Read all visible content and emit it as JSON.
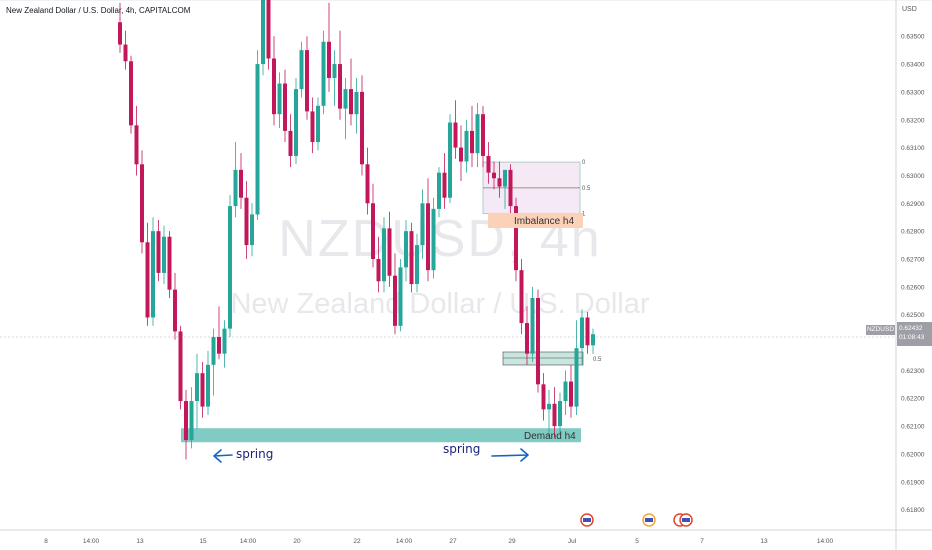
{
  "header": {
    "title": "New Zealand Dollar / U.S. Dollar, 4h, CAPITALCOM"
  },
  "watermark": {
    "symbol": "NZDUSD, 4h",
    "name": "New Zealand Dollar / U.S. Dollar"
  },
  "price_axis": {
    "currency": "USD",
    "ticker": "NZDUSD",
    "last_price": "0.62432",
    "countdown": "01:08:43"
  },
  "annotations": {
    "imbalance_label": "Imbalance h4",
    "demand_label": "Demand h4",
    "spring_left": "spring",
    "spring_right": "spring",
    "fib_upper": [
      "0",
      "0.5",
      "1"
    ],
    "fib_lower": "0.5"
  },
  "colors": {
    "up": "#26a69a",
    "down": "#c2185b",
    "demand": "#80cbc4",
    "imbalance_fill": "#f6e9f6",
    "imbalance_label": "#fbd1b8",
    "arrow": "#1565c0"
  },
  "chart_data": {
    "type": "candlestick",
    "title": "New Zealand Dollar / U.S. Dollar, 4h, CAPITALCOM",
    "y_ticks": [
      "0.63500",
      "0.63400",
      "0.63300",
      "0.63200",
      "0.63100",
      "0.63000",
      "0.62900",
      "0.62800",
      "0.62700",
      "0.62600",
      "0.62500",
      "0.62300",
      "0.62200",
      "0.62100",
      "0.62000",
      "0.61900",
      "0.61800"
    ],
    "x_ticks": [
      "8",
      "14:00",
      "13",
      "15",
      "14:00",
      "20",
      "22",
      "14:00",
      "27",
      "29",
      "Jul",
      "5",
      "7",
      "13",
      "14:00"
    ],
    "ylim": [
      0.6177,
      0.6363
    ],
    "grid": false,
    "last_price": 0.62432,
    "zones": [
      {
        "name": "Imbalance h4",
        "y_from": 0.62863,
        "y_to": 0.63048
      },
      {
        "name": "Demand h4",
        "y_from": 0.62034,
        "y_to": 0.62078
      }
    ],
    "ohlc": [
      [
        0.6355,
        0.6362,
        0.6344,
        0.6347
      ],
      [
        0.6347,
        0.6352,
        0.6338,
        0.6341
      ],
      [
        0.6341,
        0.6343,
        0.6315,
        0.6318
      ],
      [
        0.6318,
        0.6325,
        0.63,
        0.6304
      ],
      [
        0.6304,
        0.6309,
        0.6272,
        0.6276
      ],
      [
        0.6276,
        0.6283,
        0.6246,
        0.6249
      ],
      [
        0.6249,
        0.6285,
        0.6246,
        0.628
      ],
      [
        0.628,
        0.6284,
        0.6262,
        0.6265
      ],
      [
        0.6265,
        0.6282,
        0.6261,
        0.6278
      ],
      [
        0.6278,
        0.628,
        0.6256,
        0.6259
      ],
      [
        0.6259,
        0.6265,
        0.6241,
        0.6244
      ],
      [
        0.6244,
        0.6246,
        0.6216,
        0.6219
      ],
      [
        0.6219,
        0.6223,
        0.6198,
        0.6205
      ],
      [
        0.6205,
        0.6224,
        0.6202,
        0.6219
      ],
      [
        0.6219,
        0.6236,
        0.6209,
        0.6229
      ],
      [
        0.6229,
        0.6233,
        0.6213,
        0.6217
      ],
      [
        0.6217,
        0.6237,
        0.6214,
        0.6232
      ],
      [
        0.6232,
        0.6245,
        0.6221,
        0.6242
      ],
      [
        0.6242,
        0.6253,
        0.6234,
        0.6236
      ],
      [
        0.6236,
        0.6248,
        0.6231,
        0.6245
      ],
      [
        0.6245,
        0.6293,
        0.6242,
        0.6289
      ],
      [
        0.6289,
        0.6312,
        0.6285,
        0.6302
      ],
      [
        0.6302,
        0.6308,
        0.6288,
        0.6292
      ],
      [
        0.6292,
        0.6298,
        0.627,
        0.6275
      ],
      [
        0.6275,
        0.629,
        0.6271,
        0.6286
      ],
      [
        0.6286,
        0.6345,
        0.6284,
        0.634
      ],
      [
        0.634,
        0.6366,
        0.6336,
        0.6364
      ],
      [
        0.6364,
        0.6368,
        0.6338,
        0.6342
      ],
      [
        0.6342,
        0.635,
        0.6318,
        0.6322
      ],
      [
        0.6322,
        0.6337,
        0.6317,
        0.6333
      ],
      [
        0.6333,
        0.6338,
        0.6312,
        0.6316
      ],
      [
        0.6316,
        0.6322,
        0.6303,
        0.6307
      ],
      [
        0.6307,
        0.6335,
        0.6304,
        0.6331
      ],
      [
        0.6331,
        0.6348,
        0.6328,
        0.6345
      ],
      [
        0.6345,
        0.635,
        0.632,
        0.6323
      ],
      [
        0.6323,
        0.6328,
        0.6308,
        0.6312
      ],
      [
        0.6312,
        0.6328,
        0.6309,
        0.6325
      ],
      [
        0.6325,
        0.6352,
        0.6322,
        0.6348
      ],
      [
        0.6348,
        0.6362,
        0.633,
        0.6335
      ],
      [
        0.6335,
        0.6345,
        0.6325,
        0.634
      ],
      [
        0.634,
        0.6352,
        0.632,
        0.6324
      ],
      [
        0.6324,
        0.6335,
        0.6313,
        0.6331
      ],
      [
        0.6331,
        0.6342,
        0.6318,
        0.6322
      ],
      [
        0.6322,
        0.6335,
        0.6315,
        0.633
      ],
      [
        0.633,
        0.6336,
        0.63,
        0.6304
      ],
      [
        0.6304,
        0.631,
        0.6286,
        0.629
      ],
      [
        0.629,
        0.6297,
        0.6267,
        0.627
      ],
      [
        0.627,
        0.6278,
        0.6258,
        0.6262
      ],
      [
        0.6262,
        0.6285,
        0.6258,
        0.6281
      ],
      [
        0.6281,
        0.6287,
        0.626,
        0.6264
      ],
      [
        0.6264,
        0.6272,
        0.6243,
        0.6246
      ],
      [
        0.6246,
        0.627,
        0.6244,
        0.6267
      ],
      [
        0.6267,
        0.6284,
        0.6262,
        0.628
      ],
      [
        0.628,
        0.6283,
        0.6258,
        0.6261
      ],
      [
        0.6261,
        0.6279,
        0.6258,
        0.6275
      ],
      [
        0.6275,
        0.6295,
        0.627,
        0.629
      ],
      [
        0.629,
        0.6299,
        0.6262,
        0.6266
      ],
      [
        0.6266,
        0.6292,
        0.6263,
        0.6288
      ],
      [
        0.6288,
        0.6303,
        0.6285,
        0.6301
      ],
      [
        0.6301,
        0.6308,
        0.6288,
        0.6292
      ],
      [
        0.6292,
        0.6322,
        0.629,
        0.6319
      ],
      [
        0.6319,
        0.6327,
        0.6306,
        0.631
      ],
      [
        0.631,
        0.6318,
        0.6298,
        0.6305
      ],
      [
        0.6305,
        0.632,
        0.6301,
        0.6316
      ],
      [
        0.6316,
        0.6325,
        0.6303,
        0.6308
      ],
      [
        0.6308,
        0.6326,
        0.6303,
        0.6322
      ],
      [
        0.6322,
        0.6325,
        0.6303,
        0.6307
      ],
      [
        0.6307,
        0.6312,
        0.6297,
        0.6301
      ],
      [
        0.6301,
        0.6305,
        0.6295,
        0.6299
      ],
      [
        0.6299,
        0.6305,
        0.6292,
        0.6296
      ],
      [
        0.6296,
        0.6301,
        0.6288,
        0.6302
      ],
      [
        0.6302,
        0.6304,
        0.6286,
        0.6289
      ],
      [
        0.6289,
        0.6292,
        0.6262,
        0.6266
      ],
      [
        0.6266,
        0.627,
        0.6243,
        0.6247
      ],
      [
        0.6247,
        0.6253,
        0.6232,
        0.6236
      ],
      [
        0.6236,
        0.626,
        0.6233,
        0.6256
      ],
      [
        0.6256,
        0.6259,
        0.6222,
        0.6225
      ],
      [
        0.6225,
        0.6229,
        0.6212,
        0.6216
      ],
      [
        0.6216,
        0.6223,
        0.6206,
        0.6218
      ],
      [
        0.6218,
        0.6224,
        0.6206,
        0.621
      ],
      [
        0.621,
        0.6222,
        0.6207,
        0.6219
      ],
      [
        0.6219,
        0.623,
        0.6214,
        0.6226
      ],
      [
        0.6226,
        0.6232,
        0.6213,
        0.6217
      ],
      [
        0.6217,
        0.6248,
        0.6214,
        0.6238
      ],
      [
        0.6238,
        0.6252,
        0.6232,
        0.6249
      ],
      [
        0.6249,
        0.6251,
        0.6236,
        0.6239
      ],
      [
        0.6239,
        0.6245,
        0.6236,
        0.6243
      ]
    ]
  }
}
